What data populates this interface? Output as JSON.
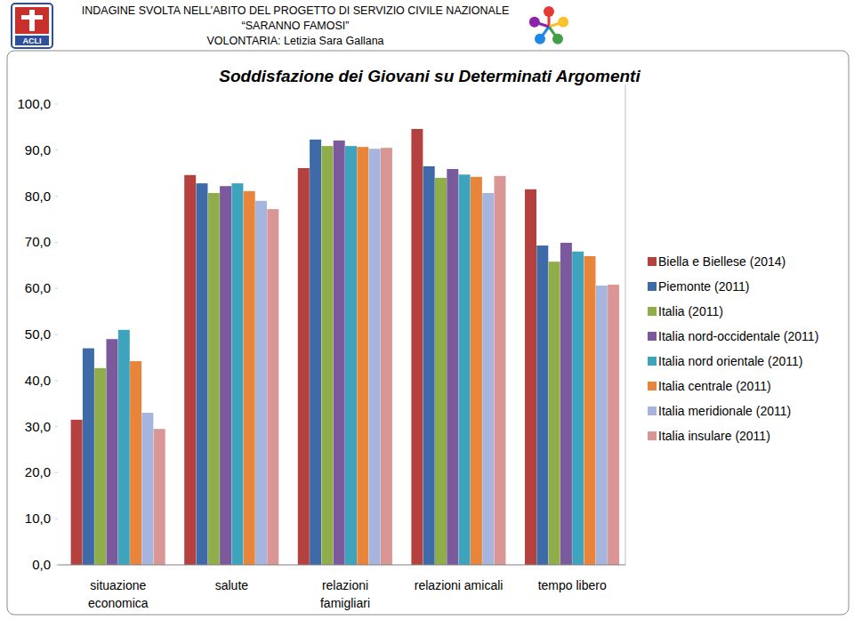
{
  "header": {
    "logo_text": "ACLI",
    "lines": [
      "INDAGINE SVOLTA NELL’ABITO DEL PROGETTO DI SERVIZIO CIVILE NAZIONALE",
      "“SARANNO FAMOSI”",
      "VOLONTARIA: Letizia Sara Gallana"
    ]
  },
  "chart_data": {
    "type": "bar",
    "title": "Soddisfazione dei Giovani su Determinati Argomenti",
    "categories": [
      "situazione economica",
      "salute",
      "relazioni famigliari",
      "relazioni amicali",
      "tempo libero"
    ],
    "series": [
      {
        "name": "Biella e Biellese (2014)",
        "color": "#b5413f",
        "values": [
          31.5,
          84.6,
          86.1,
          94.6,
          81.5
        ]
      },
      {
        "name": "Piemonte (2011)",
        "color": "#3e6aa8",
        "values": [
          47.0,
          82.8,
          92.3,
          86.5,
          69.3
        ]
      },
      {
        "name": "Italia (2011)",
        "color": "#8fae49",
        "values": [
          42.7,
          80.7,
          90.9,
          84.0,
          65.8
        ]
      },
      {
        "name": "Italia nord-occidentale (2011)",
        "color": "#7a5a9c",
        "values": [
          49.0,
          82.2,
          92.1,
          85.9,
          69.9
        ]
      },
      {
        "name": "Italia nord orientale (2011)",
        "color": "#3ea3bd",
        "values": [
          51.0,
          82.8,
          90.9,
          84.7,
          68.0
        ]
      },
      {
        "name": "Italia centrale (2011)",
        "color": "#e8853a",
        "values": [
          44.2,
          81.1,
          90.7,
          84.2,
          67.0
        ]
      },
      {
        "name": "Italia meridionale (2011)",
        "color": "#a5b5dd",
        "values": [
          33.0,
          79.0,
          90.3,
          80.7,
          60.6
        ]
      },
      {
        "name": "Italia insulare (2011)",
        "color": "#d99694",
        "values": [
          29.5,
          77.2,
          90.5,
          84.4,
          60.8
        ]
      }
    ],
    "ylim": [
      0,
      100
    ],
    "yticks": [
      {
        "value": 0,
        "label": "0,0"
      },
      {
        "value": 10,
        "label": "10,0"
      },
      {
        "value": 20,
        "label": "20,0"
      },
      {
        "value": 30,
        "label": "30,0"
      },
      {
        "value": 40,
        "label": "40,0"
      },
      {
        "value": 50,
        "label": "50,0"
      },
      {
        "value": 60,
        "label": "60,0"
      },
      {
        "value": 70,
        "label": "70,0"
      },
      {
        "value": 80,
        "label": "80,0"
      },
      {
        "value": 90,
        "label": "90,0"
      },
      {
        "value": 100,
        "label": "100,0"
      }
    ],
    "grid": false,
    "legend": "right"
  }
}
